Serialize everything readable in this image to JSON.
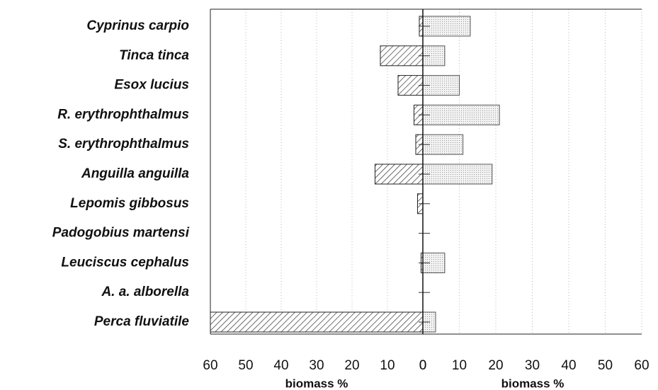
{
  "chart_data": {
    "type": "bar",
    "orientation": "horizontal",
    "layout": "back-to-back",
    "categories": [
      "Cyprinus carpio",
      "Tinca tinca",
      "Esox lucius",
      "R. erythrophthalmus",
      "S. erythrophthalmus",
      "Anguilla anguilla",
      "Lepomis gibbosus",
      "Padogobius martensi",
      "Leuciscus cephalus",
      "A. a. alborella",
      "Perca fluviatile"
    ],
    "series": [
      {
        "side": "left",
        "pattern": "hatch",
        "color": "#333333",
        "values": [
          1,
          12,
          7,
          2.5,
          2,
          13.5,
          1.5,
          0,
          0.5,
          0,
          60
        ]
      },
      {
        "side": "right",
        "pattern": "dots",
        "color": "#999999",
        "values": [
          13,
          6,
          10,
          21,
          11,
          19,
          0,
          0,
          6,
          0,
          3.5
        ]
      }
    ],
    "xlim_left": [
      0,
      60
    ],
    "xticks_left": [
      60,
      50,
      40,
      30,
      20,
      10,
      0
    ],
    "xlim_right": [
      0,
      60
    ],
    "xticks_right": [
      0,
      10,
      20,
      30,
      40,
      50,
      60
    ],
    "xlabel_left": "biomass %",
    "xlabel_right": "biomass %",
    "grid": true
  }
}
